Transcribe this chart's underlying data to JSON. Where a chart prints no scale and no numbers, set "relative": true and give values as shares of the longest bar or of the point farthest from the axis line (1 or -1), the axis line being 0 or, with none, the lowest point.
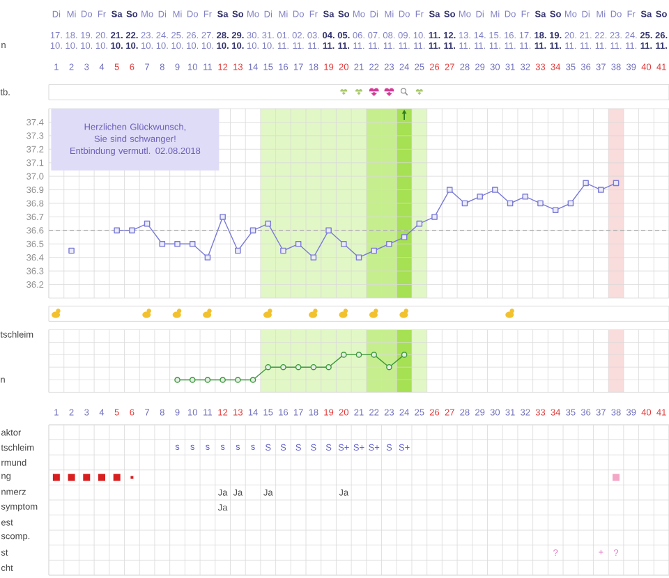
{
  "chart_data": [
    {
      "type": "heatmap",
      "categories": [
        "Di",
        "Mi",
        "Do",
        "Fr",
        "**Sa**",
        "**So**",
        "Mo",
        "Di",
        "Mi",
        "Do",
        "Fr",
        "**Sa**",
        "**So**",
        "Mo",
        "Di",
        "Mi",
        "Do",
        "Fr",
        "**Sa**",
        "**So**",
        "Mo",
        "Di",
        "Mi",
        "Do",
        "Fr",
        "**Sa**",
        "**So**",
        "Mo",
        "Di",
        "Mi",
        "Do",
        "Fr",
        "**Sa**",
        "**So**",
        "Mo",
        "Di",
        "Mi",
        "Do",
        "Fr",
        "**Sa**",
        "**So**"
      ],
      "y_categories": [
        "n"
      ],
      "cells": [
        [
          null,
          null,
          null,
          null,
          null,
          null,
          null,
          null,
          null,
          null,
          null,
          null,
          null,
          null,
          null,
          null,
          null,
          null,
          null,
          null,
          null,
          null,
          null,
          null,
          null,
          null,
          null,
          null,
          null,
          null,
          null,
          null,
          null,
          null,
          null,
          null,
          null,
          null,
          null,
          null,
          null
        ]
      ],
      "cell_labels": [
        [
          "17. 10.",
          "18. 10.",
          "19. 10.",
          "20. 10.",
          "**21. 10.**",
          "**22. 10.**",
          "23. 10.",
          "24. 10.",
          "25. 10.",
          "26. 10.",
          "27. 10.",
          "**28. 10.**",
          "**29. 10.**",
          "30. 10.",
          "31. 10.",
          "01. 11.",
          "02. 11.",
          "03. 11.",
          "**04. 11.**",
          "**05. 11.**",
          "06. 11.",
          "07. 11.",
          "08. 11.",
          "09. 11.",
          "10. 11.",
          "**11. 11.**",
          "**12. 11.**",
          "13. 11.",
          "14. 11.",
          "15. 11.",
          "16. 11.",
          "17. 11.",
          "**18. 11.**",
          "**19. 11.**",
          "20. 11.",
          "21. 11.",
          "22. 11.",
          "23. 11.",
          "24. 11.",
          "**25. 11.**",
          "**26. 11.**"
        ]
      ]
    },
    {
      "type": "line",
      "series": [
        {
          "color": "#7a7ad8",
          "x": [
            2
          ],
          "values": [
            36.45
          ]
        },
        {
          "color": "#7a7ad8",
          "x": [
            5,
            6,
            7,
            8,
            9,
            10,
            11,
            12,
            13,
            14,
            15,
            16,
            17,
            18,
            19,
            20,
            21,
            22,
            23,
            24,
            25,
            26,
            27,
            28,
            29,
            30,
            31,
            32,
            33,
            34,
            35,
            36,
            37,
            38
          ],
          "values": [
            36.6,
            36.6,
            36.65,
            36.5,
            36.5,
            36.5,
            36.4,
            36.7,
            36.45,
            36.6,
            36.65,
            36.45,
            36.5,
            36.4,
            36.6,
            36.5,
            36.4,
            36.45,
            36.5,
            36.55,
            36.65,
            36.7,
            36.9,
            36.8,
            36.85,
            36.9,
            36.8,
            36.85,
            36.8,
            36.75,
            36.8,
            36.95,
            36.9,
            36.95
          ]
        }
      ],
      "marker": "square",
      "line_style": "solid",
      "xlim": [
        0.5,
        41.5
      ],
      "xticks": [
        1,
        2,
        3,
        4,
        5,
        6,
        7,
        8,
        9,
        10,
        11,
        12,
        13,
        14,
        15,
        16,
        17,
        18,
        19,
        20,
        21,
        22,
        23,
        24,
        25,
        26,
        27,
        28,
        29,
        30,
        31,
        32,
        33,
        34,
        35,
        36,
        37,
        38,
        39,
        40,
        41
      ],
      "ylim": [
        36.1,
        37.5
      ],
      "yticks": [
        36.2,
        36.3,
        36.4,
        36.5,
        36.6,
        36.7,
        36.8,
        36.9,
        {
          "value": 37.0,
          "label": "37.0"
        },
        37.1,
        37.2,
        37.3,
        37.4
      ],
      "grid": true,
      "ref_lines": [
        {
          "axis": "y",
          "value": 36.6,
          "color": "#a8a8a8",
          "line_style": "dashed"
        }
      ],
      "bands": [
        {
          "axis": "x",
          "from": 14.5,
          "to": 25.5,
          "color": "#e2f7c6"
        },
        {
          "axis": "x",
          "from": 21.5,
          "to": 23.5,
          "color": "#c6ee8f"
        },
        {
          "axis": "x",
          "from": 23.5,
          "to": 24.5,
          "color": "#a6e053"
        },
        {
          "axis": "x",
          "from": 37.5,
          "to": 38.5,
          "color": "#f9dcdc"
        }
      ],
      "annotations": [
        "Herzlichen Glückwunsch,",
        "Sie sind schwanger!",
        "Entbindung vermutl. 02.08.2018",
        "tb."
      ]
    },
    {
      "type": "line",
      "x": [
        9,
        10,
        11,
        12,
        13,
        14,
        15,
        16,
        17,
        18,
        19,
        20,
        21,
        22,
        23,
        24
      ],
      "values": [
        0.33,
        0.33,
        0.33,
        0.33,
        0.33,
        0.33,
        0.67,
        0.67,
        0.67,
        0.67,
        0.67,
        1,
        1,
        1,
        0.67,
        1
      ],
      "relative": true,
      "color": "#3b973b",
      "marker": "circle",
      "line_style": "solid",
      "xlim": [
        0.5,
        41.5
      ],
      "xticks": [
        1,
        2,
        3,
        4,
        5,
        6,
        7,
        8,
        9,
        10,
        11,
        12,
        13,
        14,
        15,
        16,
        17,
        18,
        19,
        20,
        21,
        22,
        23,
        24,
        25,
        26,
        27,
        28,
        29,
        30,
        31,
        32,
        33,
        34,
        35,
        36,
        37,
        38,
        39,
        40,
        41
      ],
      "tick_labels": "x",
      "grid": "x",
      "ylabel": "tschleim",
      "ref_lines": [
        {
          "axis": "y",
          "value": 0.33,
          "color": "#d9d9d9",
          "line_style": "solid"
        },
        {
          "axis": "y",
          "value": 0.67,
          "color": "#d9d9d9",
          "line_style": "solid"
        },
        {
          "axis": "y",
          "value": 1,
          "color": "#d9d9d9",
          "line_style": "solid"
        },
        {
          "axis": "y",
          "value": 1.33,
          "color": "#d9d9d9",
          "line_style": "solid"
        }
      ],
      "bands": [
        {
          "axis": "x",
          "from": 14.5,
          "to": 25.5,
          "color": "#e2f7c6"
        },
        {
          "axis": "x",
          "from": 21.5,
          "to": 23.5,
          "color": "#c6ee8f"
        },
        {
          "axis": "x",
          "from": 23.5,
          "to": 24.5,
          "color": "#a6e053"
        },
        {
          "axis": "x",
          "from": 37.5,
          "to": 38.5,
          "color": "#f9dcdc"
        }
      ],
      "annotations": [
        "n"
      ]
    },
    {
      "type": "heatmap",
      "categories": [
        null,
        null,
        null,
        null,
        null,
        null,
        null,
        null,
        null,
        null,
        null,
        null,
        null,
        null,
        null,
        null,
        null,
        null,
        null,
        null,
        null,
        null,
        null,
        null,
        null,
        null,
        null,
        null,
        null,
        null,
        null,
        null,
        null,
        null,
        null,
        null,
        null,
        null,
        null,
        null,
        null
      ],
      "y_categories": [
        "aktor",
        "tschleim",
        "rmund",
        "ng",
        "nmerz",
        "symptom",
        "est",
        "scomp.",
        "st",
        "cht"
      ],
      "grid": true,
      "cells": [
        [
          null,
          null,
          null,
          null,
          null,
          null,
          null,
          null,
          null,
          null,
          null,
          null,
          null,
          null,
          null,
          null,
          null,
          null,
          null,
          null,
          null,
          null,
          null,
          null,
          null,
          null,
          null,
          null,
          null,
          null,
          null,
          null,
          null,
          null,
          null,
          null,
          null,
          null,
          null,
          null,
          null
        ],
        [
          null,
          null,
          null,
          null,
          null,
          null,
          null,
          null,
          null,
          null,
          null,
          null,
          null,
          null,
          null,
          null,
          null,
          null,
          null,
          null,
          null,
          null,
          null,
          null,
          null,
          null,
          null,
          null,
          null,
          null,
          null,
          null,
          null,
          null,
          null,
          null,
          null,
          null,
          null,
          null,
          null
        ],
        [
          null,
          null,
          null,
          null,
          null,
          null,
          null,
          null,
          null,
          null,
          null,
          null,
          null,
          null,
          null,
          null,
          null,
          null,
          null,
          null,
          null,
          null,
          null,
          null,
          null,
          null,
          null,
          null,
          null,
          null,
          null,
          null,
          null,
          null,
          null,
          null,
          null,
          null,
          null,
          null,
          null
        ],
        [
          null,
          null,
          null,
          null,
          null,
          null,
          null,
          null,
          null,
          null,
          null,
          null,
          null,
          null,
          null,
          null,
          null,
          null,
          null,
          null,
          null,
          null,
          null,
          null,
          null,
          null,
          null,
          null,
          null,
          null,
          null,
          null,
          null,
          null,
          null,
          null,
          null,
          null,
          null,
          null,
          null
        ],
        [
          null,
          null,
          null,
          null,
          null,
          null,
          null,
          null,
          null,
          null,
          null,
          null,
          null,
          null,
          null,
          null,
          null,
          null,
          null,
          null,
          null,
          null,
          null,
          null,
          null,
          null,
          null,
          null,
          null,
          null,
          null,
          null,
          null,
          null,
          null,
          null,
          null,
          null,
          null,
          null,
          null
        ],
        [
          null,
          null,
          null,
          null,
          null,
          null,
          null,
          null,
          null,
          null,
          null,
          null,
          null,
          null,
          null,
          null,
          null,
          null,
          null,
          null,
          null,
          null,
          null,
          null,
          null,
          null,
          null,
          null,
          null,
          null,
          null,
          null,
          null,
          null,
          null,
          null,
          null,
          null,
          null,
          null,
          null
        ],
        [
          null,
          null,
          null,
          null,
          null,
          null,
          null,
          null,
          null,
          null,
          null,
          null,
          null,
          null,
          null,
          null,
          null,
          null,
          null,
          null,
          null,
          null,
          null,
          null,
          null,
          null,
          null,
          null,
          null,
          null,
          null,
          null,
          null,
          null,
          null,
          null,
          null,
          null,
          null,
          null,
          null
        ],
        [
          null,
          null,
          null,
          null,
          null,
          null,
          null,
          null,
          null,
          null,
          null,
          null,
          null,
          null,
          null,
          null,
          null,
          null,
          null,
          null,
          null,
          null,
          null,
          null,
          null,
          null,
          null,
          null,
          null,
          null,
          null,
          null,
          null,
          null,
          null,
          null,
          null,
          null,
          null,
          null,
          null
        ],
        [
          null,
          null,
          null,
          null,
          null,
          null,
          null,
          null,
          null,
          null,
          null,
          null,
          null,
          null,
          null,
          null,
          null,
          null,
          null,
          null,
          null,
          null,
          null,
          null,
          null,
          null,
          null,
          null,
          null,
          null,
          null,
          null,
          null,
          null,
          null,
          null,
          null,
          null,
          null,
          null,
          null
        ],
        [
          null,
          null,
          null,
          null,
          null,
          null,
          null,
          null,
          null,
          null,
          null,
          null,
          null,
          null,
          null,
          null,
          null,
          null,
          null,
          null,
          null,
          null,
          null,
          null,
          null,
          null,
          null,
          null,
          null,
          null,
          null,
          null,
          null,
          null,
          null,
          null,
          null,
          null,
          null,
          null,
          null
        ]
      ],
      "cell_labels": [
        [
          null,
          null,
          null,
          null,
          null,
          null,
          null,
          null,
          null,
          null,
          null,
          null,
          null,
          null,
          null,
          null,
          null,
          null,
          null,
          null,
          null,
          null,
          null,
          null,
          null,
          null,
          null,
          null,
          null,
          null,
          null,
          null,
          null,
          null,
          null,
          null,
          null,
          null,
          null,
          null,
          null
        ],
        [
          null,
          null,
          null,
          null,
          null,
          null,
          null,
          null,
          "s",
          "s",
          "s",
          "s",
          "s",
          "s",
          "S",
          "S",
          "S",
          "S",
          "S",
          "S+",
          "S+",
          "S+",
          "S",
          "S+",
          null,
          null,
          null,
          null,
          null,
          null,
          null,
          null,
          null,
          null,
          null,
          null,
          null,
          null,
          null,
          null,
          null
        ],
        [
          null,
          null,
          null,
          null,
          null,
          null,
          null,
          null,
          null,
          null,
          null,
          null,
          null,
          null,
          null,
          null,
          null,
          null,
          null,
          null,
          null,
          null,
          null,
          null,
          null,
          null,
          null,
          null,
          null,
          null,
          null,
          null,
          null,
          null,
          null,
          null,
          null,
          null,
          null,
          null,
          null
        ],
        [
          null,
          null,
          null,
          null,
          null,
          null,
          null,
          null,
          null,
          null,
          null,
          null,
          null,
          null,
          null,
          null,
          null,
          null,
          null,
          null,
          null,
          null,
          null,
          null,
          null,
          null,
          null,
          null,
          null,
          null,
          null,
          null,
          null,
          null,
          null,
          null,
          null,
          null,
          null,
          null,
          null
        ],
        [
          null,
          null,
          null,
          null,
          null,
          null,
          null,
          null,
          null,
          null,
          null,
          "Ja",
          "Ja",
          null,
          "Ja",
          null,
          null,
          null,
          null,
          "Ja",
          null,
          null,
          null,
          null,
          null,
          null,
          null,
          null,
          null,
          null,
          null,
          null,
          null,
          null,
          null,
          null,
          null,
          null,
          null,
          null,
          null
        ],
        [
          null,
          null,
          null,
          null,
          null,
          null,
          null,
          null,
          null,
          null,
          null,
          "Ja",
          null,
          null,
          null,
          null,
          null,
          null,
          null,
          null,
          null,
          null,
          null,
          null,
          null,
          null,
          null,
          null,
          null,
          null,
          null,
          null,
          null,
          null,
          null,
          null,
          null,
          null,
          null,
          null,
          null
        ],
        [
          null,
          null,
          null,
          null,
          null,
          null,
          null,
          null,
          null,
          null,
          null,
          null,
          null,
          null,
          null,
          null,
          null,
          null,
          null,
          null,
          null,
          null,
          null,
          null,
          null,
          null,
          null,
          null,
          null,
          null,
          null,
          null,
          null,
          null,
          null,
          null,
          null,
          null,
          null,
          null,
          null
        ],
        [
          null,
          null,
          null,
          null,
          null,
          null,
          null,
          null,
          null,
          null,
          null,
          null,
          null,
          null,
          null,
          null,
          null,
          null,
          null,
          null,
          null,
          null,
          null,
          null,
          null,
          null,
          null,
          null,
          null,
          null,
          null,
          null,
          null,
          null,
          null,
          null,
          null,
          null,
          null,
          null,
          null
        ],
        [
          null,
          null,
          null,
          null,
          null,
          null,
          null,
          null,
          null,
          null,
          null,
          null,
          null,
          null,
          null,
          null,
          null,
          null,
          null,
          null,
          null,
          null,
          null,
          null,
          null,
          null,
          null,
          null,
          null,
          null,
          null,
          null,
          null,
          "?",
          null,
          null,
          "+",
          "?",
          null,
          null,
          null
        ],
        [
          null,
          null,
          null,
          null,
          null,
          null,
          null,
          null,
          null,
          null,
          null,
          null,
          null,
          null,
          null,
          null,
          null,
          null,
          null,
          null,
          null,
          null,
          null,
          null,
          null,
          null,
          null,
          null,
          null,
          null,
          null,
          null,
          null,
          null,
          null,
          null,
          null,
          null,
          null,
          null,
          null
        ]
      ]
    }
  ]
}
